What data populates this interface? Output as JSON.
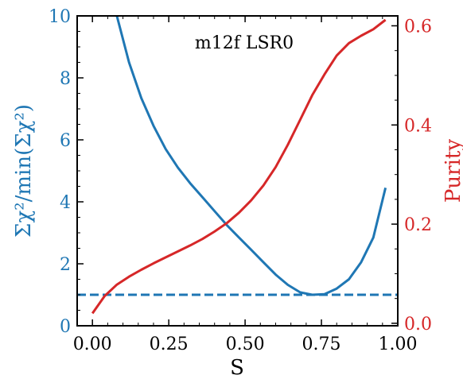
{
  "chart_data": {
    "type": "line",
    "annotation": "m12f LSR0",
    "xlabel": "S",
    "ylabel_left": "Σχ²/min(Σχ²)",
    "ylabel_right": "Purity",
    "xlim": [
      -0.05,
      1.0
    ],
    "ylim_left": [
      0,
      10
    ],
    "ylim_right": [
      -0.005,
      0.62
    ],
    "x_ticks": [
      0.0,
      0.25,
      0.5,
      0.75,
      1.0
    ],
    "x_tick_labels": [
      "0.00",
      "0.25",
      "0.50",
      "0.75",
      "1.00"
    ],
    "y_left_ticks": [
      0,
      2,
      4,
      6,
      8,
      10
    ],
    "y_left_tick_labels": [
      "0",
      "2",
      "4",
      "6",
      "8",
      "10"
    ],
    "y_right_ticks": [
      0.0,
      0.2,
      0.4,
      0.6
    ],
    "y_right_tick_labels": [
      "0.0",
      "0.2",
      "0.4",
      "0.6"
    ],
    "grid": false,
    "series": [
      {
        "axis": "left",
        "color": "#1f77b4",
        "style": "solid",
        "x": [
          0.08,
          0.12,
          0.16,
          0.2,
          0.24,
          0.28,
          0.32,
          0.36,
          0.4,
          0.44,
          0.48,
          0.52,
          0.56,
          0.6,
          0.64,
          0.68,
          0.72,
          0.76,
          0.8,
          0.84,
          0.88,
          0.92,
          0.96
        ],
        "y": [
          10.0,
          8.5,
          7.35,
          6.45,
          5.7,
          5.1,
          4.6,
          4.15,
          3.7,
          3.25,
          2.85,
          2.45,
          2.05,
          1.65,
          1.32,
          1.08,
          1.0,
          1.02,
          1.2,
          1.5,
          2.05,
          2.85,
          4.45
        ]
      },
      {
        "axis": "left",
        "color": "#1f77b4",
        "style": "dashed",
        "x": [
          -0.05,
          1.0
        ],
        "y": [
          1.0,
          1.0
        ]
      },
      {
        "axis": "right",
        "color": "#d62728",
        "style": "solid",
        "x": [
          0.0,
          0.04,
          0.08,
          0.12,
          0.16,
          0.2,
          0.24,
          0.28,
          0.32,
          0.36,
          0.4,
          0.44,
          0.48,
          0.52,
          0.56,
          0.6,
          0.64,
          0.68,
          0.72,
          0.76,
          0.8,
          0.84,
          0.88,
          0.92,
          0.96
        ],
        "y": [
          0.02,
          0.055,
          0.078,
          0.094,
          0.108,
          0.121,
          0.133,
          0.145,
          0.157,
          0.17,
          0.185,
          0.202,
          0.223,
          0.248,
          0.278,
          0.315,
          0.36,
          0.41,
          0.46,
          0.502,
          0.54,
          0.565,
          0.58,
          0.593,
          0.612
        ]
      }
    ]
  },
  "colors": {
    "left_axis": "#1f77b4",
    "right_axis": "#d62728",
    "frame": "#000000"
  }
}
